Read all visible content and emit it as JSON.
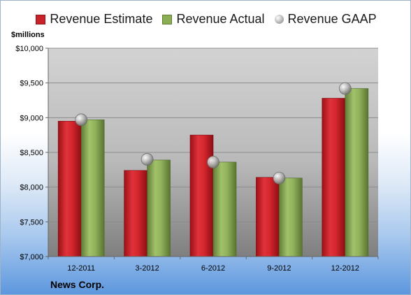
{
  "unit_label": "$millions",
  "company": "News Corp.",
  "legend": [
    {
      "label": "Revenue Estimate",
      "color": "#c8232a",
      "marker": "square"
    },
    {
      "label": "Revenue Actual",
      "color": "#8aad55",
      "marker": "square"
    },
    {
      "label": "Revenue GAAP",
      "color": "#b7b7b7",
      "marker": "circle"
    }
  ],
  "chart_data": {
    "type": "bar",
    "title": "",
    "ylabel": "$millions",
    "xlabel": "",
    "ylim": [
      7000,
      10000
    ],
    "yticks": [
      7000,
      7500,
      8000,
      8500,
      9000,
      9500,
      10000
    ],
    "ytick_labels": [
      "$7,000",
      "$7,500",
      "$8,000",
      "$8,500",
      "$9,000",
      "$9,500",
      "$10,000"
    ],
    "categories": [
      "12-2011",
      "3-2012",
      "6-2012",
      "9-2012",
      "12-2012"
    ],
    "grid": true,
    "legend_position": "top",
    "series": [
      {
        "name": "Revenue Estimate",
        "kind": "bar",
        "color": "#c8232a",
        "values": [
          8950,
          8240,
          8750,
          8140,
          9280
        ]
      },
      {
        "name": "Revenue Actual",
        "kind": "bar",
        "color": "#8aad55",
        "values": [
          8970,
          8390,
          8360,
          8130,
          9420
        ]
      },
      {
        "name": "Revenue GAAP",
        "kind": "marker",
        "color": "#b7b7b7",
        "values": [
          8970,
          8400,
          8360,
          8130,
          9420
        ]
      }
    ]
  }
}
